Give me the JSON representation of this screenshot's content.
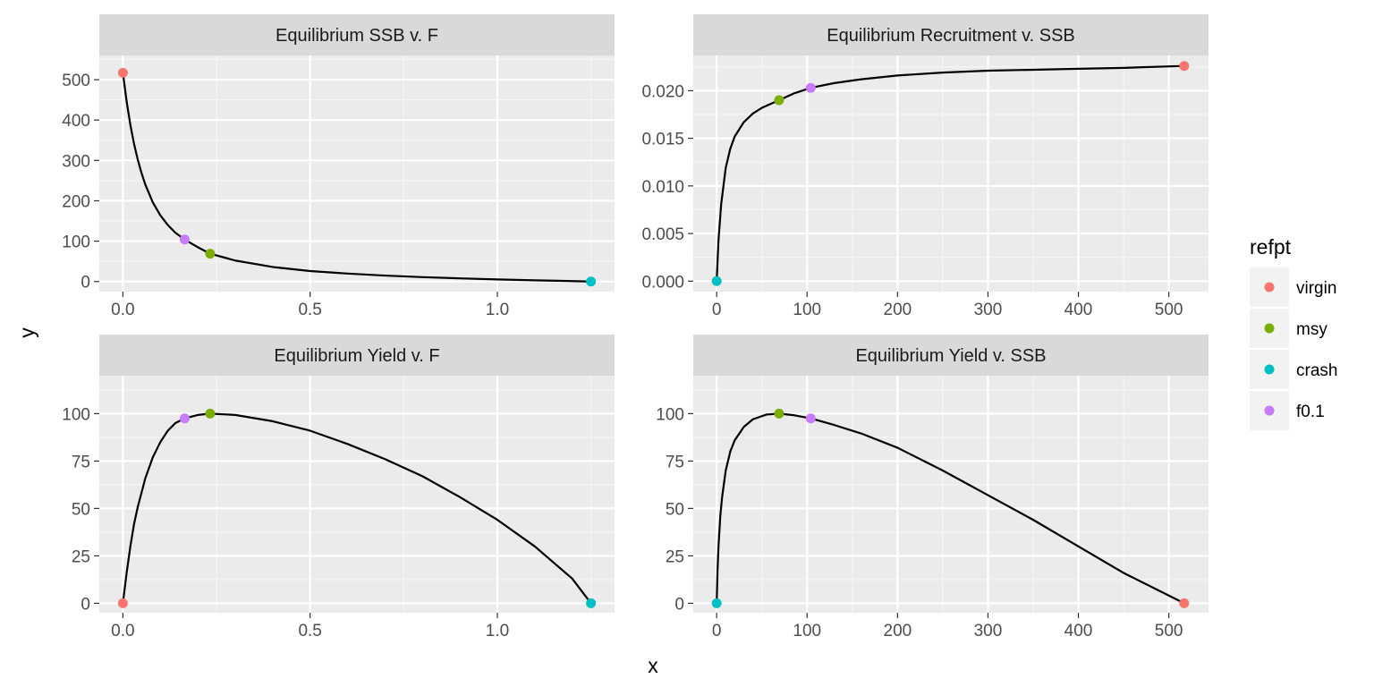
{
  "axes": {
    "xlabel": "x",
    "ylabel": "y"
  },
  "legend": {
    "title": "refpt",
    "placement": "right",
    "entries": [
      {
        "label": "virgin",
        "color": "#F8766D"
      },
      {
        "label": "msy",
        "color": "#7CAE00"
      },
      {
        "label": "crash",
        "color": "#00BFC4"
      },
      {
        "label": "f0.1",
        "color": "#C77CFF"
      }
    ]
  },
  "chart_data": [
    {
      "type": "line",
      "title": "Equilibrium SSB v. F",
      "xlim": [
        -0.063,
        1.313
      ],
      "ylim": [
        -25,
        560
      ],
      "xticks": [
        0,
        0.5,
        1.0
      ],
      "xtick_labels": [
        "0.0",
        "0.5",
        "1.0"
      ],
      "yticks": [
        0,
        100,
        200,
        300,
        400,
        500
      ],
      "ytick_labels": [
        "0",
        "100",
        "200",
        "300",
        "400",
        "500"
      ],
      "line": {
        "x": [
          0,
          0.01,
          0.02,
          0.03,
          0.04,
          0.05,
          0.06,
          0.08,
          0.1,
          0.12,
          0.14,
          0.165,
          0.2,
          0.233,
          0.3,
          0.4,
          0.5,
          0.6,
          0.7,
          0.8,
          0.9,
          1.0,
          1.1,
          1.2,
          1.25
        ],
        "y": [
          517,
          446,
          388,
          340,
          301,
          268,
          240,
          196,
          164,
          140,
          121,
          104,
          85,
          69,
          52,
          36,
          25.9,
          19.7,
          14.7,
          10.9,
          7.8,
          5.2,
          3.0,
          1.1,
          0
        ]
      },
      "points": [
        {
          "refpt": "virgin",
          "x": 0,
          "y": 517
        },
        {
          "refpt": "msy",
          "x": 0.233,
          "y": 69
        },
        {
          "refpt": "crash",
          "x": 1.25,
          "y": 0
        },
        {
          "refpt": "f0.1",
          "x": 0.165,
          "y": 104
        }
      ]
    },
    {
      "type": "line",
      "title": "Equilibrium Recruitment v. SSB",
      "xlim": [
        -25.9,
        543.9
      ],
      "ylim": [
        -0.0011,
        0.0237
      ],
      "xticks": [
        0,
        100,
        200,
        300,
        400,
        500
      ],
      "xtick_labels": [
        "0",
        "100",
        "200",
        "300",
        "400",
        "500"
      ],
      "yticks": [
        0,
        0.005,
        0.01,
        0.015,
        0.02
      ],
      "ytick_labels": [
        "0.000",
        "0.005",
        "0.010",
        "0.015",
        "0.020"
      ],
      "line": {
        "x": [
          0,
          2,
          5,
          10,
          15,
          20,
          30,
          40,
          50,
          69,
          85,
          104,
          130,
          160,
          200,
          250,
          300,
          350,
          400,
          450,
          517
        ],
        "y": [
          0,
          0.0043,
          0.0081,
          0.0119,
          0.0139,
          0.0152,
          0.0167,
          0.0176,
          0.0182,
          0.019,
          0.0197,
          0.0203,
          0.0208,
          0.0212,
          0.0216,
          0.0219,
          0.0221,
          0.0222,
          0.0223,
          0.0224,
          0.0226
        ]
      },
      "points": [
        {
          "refpt": "virgin",
          "x": 517,
          "y": 0.0226
        },
        {
          "refpt": "msy",
          "x": 69,
          "y": 0.019
        },
        {
          "refpt": "crash",
          "x": 0,
          "y": 0
        },
        {
          "refpt": "f0.1",
          "x": 104,
          "y": 0.0203
        }
      ]
    },
    {
      "type": "line",
      "title": "Equilibrium Yield v. F",
      "xlim": [
        -0.063,
        1.313
      ],
      "ylim": [
        -5,
        120
      ],
      "xticks": [
        0,
        0.5,
        1.0
      ],
      "xtick_labels": [
        "0.0",
        "0.5",
        "1.0"
      ],
      "yticks": [
        0,
        25,
        50,
        75,
        100
      ],
      "ytick_labels": [
        "0",
        "25",
        "50",
        "75",
        "100"
      ],
      "line": {
        "x": [
          0,
          0.01,
          0.02,
          0.03,
          0.04,
          0.06,
          0.08,
          0.1,
          0.12,
          0.14,
          0.165,
          0.2,
          0.233,
          0.3,
          0.4,
          0.5,
          0.6,
          0.7,
          0.8,
          0.9,
          1.0,
          1.1,
          1.2,
          1.25
        ],
        "y": [
          0,
          16,
          30,
          42,
          51,
          66,
          77,
          85,
          91,
          95,
          97.5,
          99.3,
          100,
          99.3,
          96,
          91,
          84,
          76,
          67,
          56,
          44,
          30,
          13,
          0
        ]
      },
      "points": [
        {
          "refpt": "virgin",
          "x": 0,
          "y": 0
        },
        {
          "refpt": "msy",
          "x": 0.233,
          "y": 100
        },
        {
          "refpt": "crash",
          "x": 1.25,
          "y": 0
        },
        {
          "refpt": "f0.1",
          "x": 0.165,
          "y": 97.5
        }
      ]
    },
    {
      "type": "line",
      "title": "Equilibrium Yield v. SSB",
      "xlim": [
        -25.9,
        543.9
      ],
      "ylim": [
        -5,
        120
      ],
      "xticks": [
        0,
        100,
        200,
        300,
        400,
        500
      ],
      "xtick_labels": [
        "0",
        "100",
        "200",
        "300",
        "400",
        "500"
      ],
      "yticks": [
        0,
        25,
        50,
        75,
        100
      ],
      "ytick_labels": [
        "0",
        "25",
        "50",
        "75",
        "100"
      ],
      "line": {
        "x": [
          0,
          1,
          2,
          4,
          6,
          10,
          15,
          20,
          30,
          40,
          55,
          69,
          85,
          104,
          130,
          160,
          200,
          250,
          300,
          350,
          400,
          450,
          517
        ],
        "y": [
          0,
          18,
          30,
          46,
          56,
          70,
          80,
          86,
          93,
          97,
          99.5,
          100,
          99.2,
          97.5,
          94,
          89.5,
          82,
          70,
          57,
          44,
          30,
          16,
          0
        ]
      },
      "points": [
        {
          "refpt": "virgin",
          "x": 517,
          "y": 0
        },
        {
          "refpt": "msy",
          "x": 69,
          "y": 100
        },
        {
          "refpt": "crash",
          "x": 0,
          "y": 0
        },
        {
          "refpt": "f0.1",
          "x": 104,
          "y": 97.5
        }
      ]
    }
  ]
}
